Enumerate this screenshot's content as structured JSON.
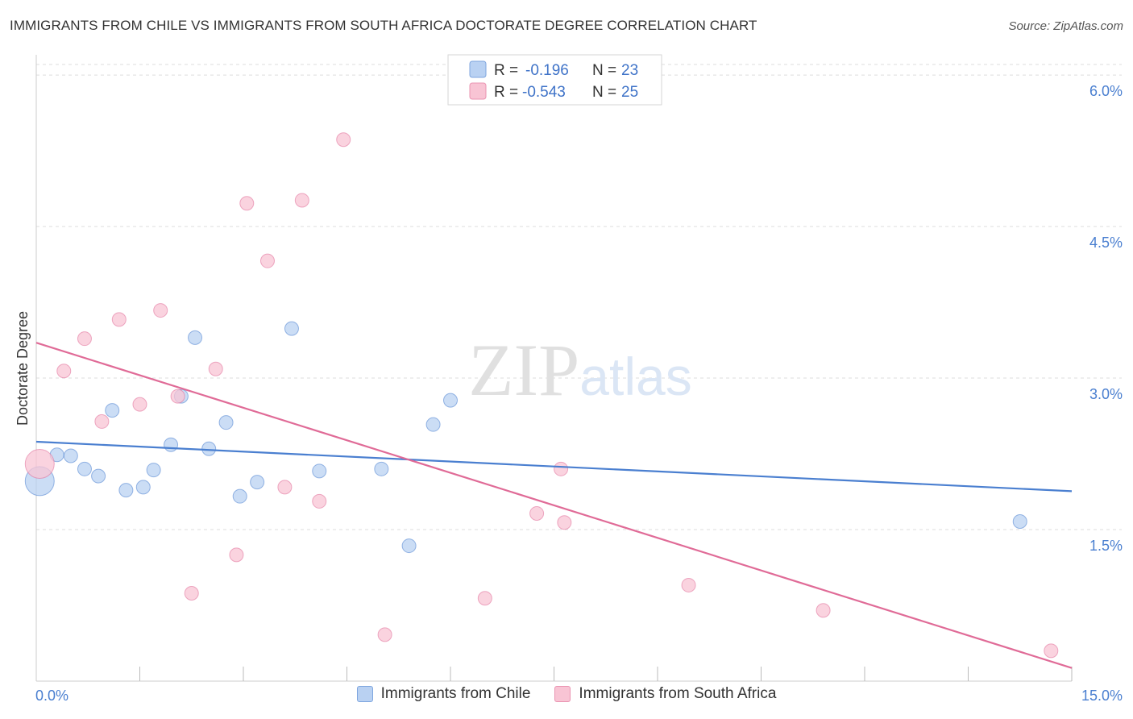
{
  "header": {
    "title": "IMMIGRANTS FROM CHILE VS IMMIGRANTS FROM SOUTH AFRICA DOCTORATE DEGREE CORRELATION CHART",
    "source": "Source: ZipAtlas.com"
  },
  "watermark": "ZIPatlas",
  "chart_data": {
    "type": "scatter",
    "ylabel": "Doctorate Degree",
    "xlim": [
      0,
      15
    ],
    "ylim": [
      0,
      6.2
    ],
    "x_tick_labels": {
      "min": "0.0%",
      "max": "15.0%"
    },
    "y_ticks": [
      {
        "value": 1.5,
        "label": "1.5%"
      },
      {
        "value": 3.0,
        "label": "3.0%"
      },
      {
        "value": 4.5,
        "label": "4.5%"
      },
      {
        "value": 6.0,
        "label": "6.0%"
      }
    ],
    "grid": true,
    "legend_placement": "top-center",
    "series": [
      {
        "name": "Immigrants from Chile",
        "color": "#4a7fd0",
        "fill": "#b9d1f2",
        "stats": {
          "r_label": "R =",
          "r_value": "-0.196",
          "n_label": "N =",
          "n_value": "23"
        },
        "trend": {
          "x0": 0,
          "y0": 2.37,
          "x1": 15,
          "y1": 1.88
        },
        "points": [
          {
            "x": 0.05,
            "y": 1.98,
            "size": "large"
          },
          {
            "x": 0.3,
            "y": 2.24
          },
          {
            "x": 0.5,
            "y": 2.23
          },
          {
            "x": 0.7,
            "y": 2.1
          },
          {
            "x": 0.9,
            "y": 2.03
          },
          {
            "x": 1.1,
            "y": 2.68
          },
          {
            "x": 1.3,
            "y": 1.89
          },
          {
            "x": 1.55,
            "y": 1.92
          },
          {
            "x": 1.7,
            "y": 2.09
          },
          {
            "x": 1.95,
            "y": 2.34
          },
          {
            "x": 2.1,
            "y": 2.82
          },
          {
            "x": 2.3,
            "y": 3.4
          },
          {
            "x": 2.5,
            "y": 2.3
          },
          {
            "x": 2.75,
            "y": 2.56
          },
          {
            "x": 2.95,
            "y": 1.83
          },
          {
            "x": 3.2,
            "y": 1.97
          },
          {
            "x": 3.7,
            "y": 3.49
          },
          {
            "x": 4.1,
            "y": 2.08
          },
          {
            "x": 5.0,
            "y": 2.1
          },
          {
            "x": 5.4,
            "y": 1.34
          },
          {
            "x": 5.75,
            "y": 2.54
          },
          {
            "x": 6.0,
            "y": 2.78
          },
          {
            "x": 14.25,
            "y": 1.58
          }
        ]
      },
      {
        "name": "Immigrants from South Africa",
        "color": "#e06b97",
        "fill": "#f8c4d4",
        "stats": {
          "r_label": "R =",
          "r_value": "-0.543",
          "n_label": "N =",
          "n_value": "25"
        },
        "trend": {
          "x0": 0,
          "y0": 3.35,
          "x1": 15,
          "y1": 0.13
        },
        "points": [
          {
            "x": 0.05,
            "y": 2.15,
            "size": "large"
          },
          {
            "x": 0.4,
            "y": 3.07
          },
          {
            "x": 0.7,
            "y": 3.39
          },
          {
            "x": 0.95,
            "y": 2.57
          },
          {
            "x": 1.2,
            "y": 3.58
          },
          {
            "x": 1.5,
            "y": 2.74
          },
          {
            "x": 1.8,
            "y": 3.67
          },
          {
            "x": 2.05,
            "y": 2.82
          },
          {
            "x": 2.25,
            "y": 0.87
          },
          {
            "x": 2.6,
            "y": 3.09
          },
          {
            "x": 2.9,
            "y": 1.25
          },
          {
            "x": 3.05,
            "y": 4.73
          },
          {
            "x": 3.35,
            "y": 4.16
          },
          {
            "x": 3.6,
            "y": 1.92
          },
          {
            "x": 3.85,
            "y": 4.76
          },
          {
            "x": 4.1,
            "y": 1.78
          },
          {
            "x": 4.45,
            "y": 5.36
          },
          {
            "x": 5.05,
            "y": 0.46
          },
          {
            "x": 6.5,
            "y": 0.82
          },
          {
            "x": 7.25,
            "y": 1.66
          },
          {
            "x": 7.6,
            "y": 2.1
          },
          {
            "x": 7.65,
            "y": 1.57
          },
          {
            "x": 9.45,
            "y": 0.95
          },
          {
            "x": 11.4,
            "y": 0.7
          },
          {
            "x": 14.7,
            "y": 0.3
          }
        ]
      }
    ]
  }
}
